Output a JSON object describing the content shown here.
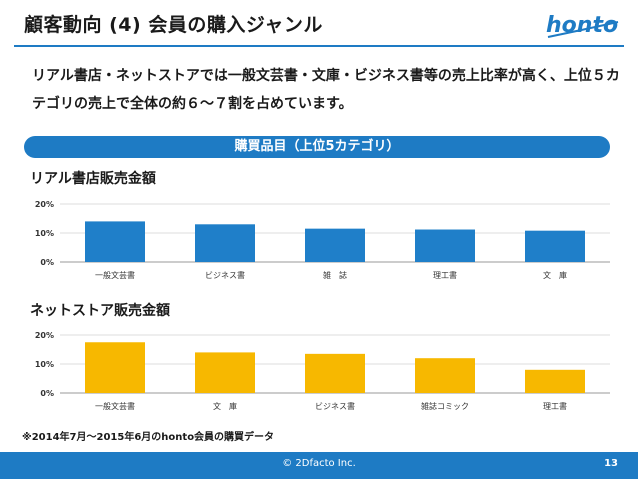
{
  "title": "顧客動向 (4) 会員の購入ジャンル",
  "logo_text": "honto",
  "lead": "リアル書店・ネットストアでは一般文芸書・文庫・ビジネス書等の売上比率が高く、上位５カテゴリの売上で全体の約６～７割を占めています。",
  "band_label": "購買品目（上位5カテゴリ）",
  "note": "※2014年7月～2015年6月のhonto会員の購買データ",
  "footer": {
    "copyright": "© 2Dfacto Inc.",
    "page": "13"
  },
  "colors": {
    "accent": "#1e7bc4",
    "bar_store": "#1f7fc9",
    "bar_net": "#f7b800"
  },
  "chart_data": [
    {
      "type": "bar",
      "title": "リアル書店販売金額",
      "categories": [
        "一般文芸書",
        "ビジネス書",
        "雑　誌",
        "理工書",
        "文　庫"
      ],
      "values": [
        14,
        13,
        11.5,
        11.2,
        10.8
      ],
      "ylim": [
        0,
        20
      ],
      "yticks": [
        "0%",
        "10%",
        "20%"
      ],
      "grid": true,
      "color": "#1f7fc9"
    },
    {
      "type": "bar",
      "title": "ネットストア販売金額",
      "categories": [
        "一般文芸書",
        "文　庫",
        "ビジネス書",
        "雑誌コミック",
        "理工書"
      ],
      "values": [
        17.5,
        14,
        13.5,
        12,
        8
      ],
      "ylim": [
        0,
        20
      ],
      "yticks": [
        "0%",
        "10%",
        "20%"
      ],
      "grid": true,
      "color": "#f7b800"
    }
  ]
}
